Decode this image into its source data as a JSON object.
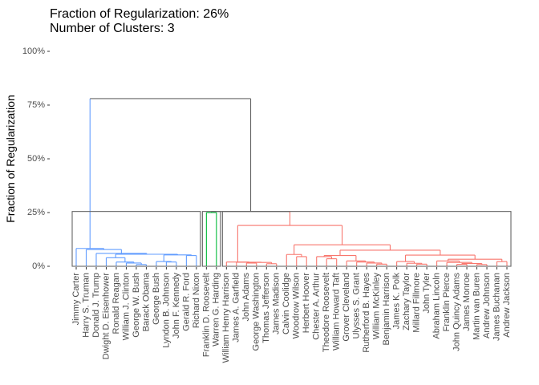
{
  "chart_data": {
    "type": "dendrogram",
    "title": "Fraction of Regularization: 26%",
    "subtitle": "Number of Clusters: 3",
    "ylabel": "Fraction of Regularization",
    "ylim": [
      0,
      100
    ],
    "yticks": [
      {
        "value": 0,
        "label": "0%"
      },
      {
        "value": 25,
        "label": "25%"
      },
      {
        "value": 50,
        "label": "50%"
      },
      {
        "value": 75,
        "label": "75%"
      },
      {
        "value": 100,
        "label": "100%"
      }
    ],
    "rect_height": 25.5,
    "rect_color": "#666666",
    "tree": {
      "height": 78,
      "color": "#666666",
      "children": [
        {
          "height": 8.3,
          "color": "#619CFF",
          "children": [
            {
              "label": "Jimmy Carter"
            },
            {
              "height": 7.8,
              "children": [
                {
                  "label": "Harry S. Truman"
                },
                {
                  "height": 6.0,
                  "children": [
                    {
                      "label": "Donald J. Trump"
                    },
                    {
                      "height": 5.6,
                      "children": [
                        {
                          "height": 4.0,
                          "children": [
                            {
                              "label": "Dwight D. Eisenhower"
                            },
                            {
                              "height": 2.0,
                              "children": [
                                {
                                  "label": "Ronald Reagan"
                                },
                                {
                                  "height": 1.5,
                                  "children": [
                                    {
                                      "label": "William J. Clinton"
                                    },
                                    {
                                      "height": 0.8,
                                      "children": [
                                        {
                                          "label": "George W. Bush"
                                        },
                                        {
                                          "label": "Barack Obama"
                                        }
                                      ]
                                    }
                                  ]
                                }
                              ]
                            }
                          ]
                        },
                        {
                          "height": 5.3,
                          "children": [
                            {
                              "height": 2.2,
                              "children": [
                                {
                                  "label": "George Bush"
                                },
                                {
                                  "height": 2.0,
                                  "children": [
                                    {
                                      "label": "Lyndon B. Johnson"
                                    },
                                    {
                                      "label": "John F. Kennedy"
                                    }
                                  ]
                                }
                              ]
                            },
                            {
                              "height": 5.0,
                              "children": [
                                {
                                  "label": "Gerald R. Ford"
                                },
                                {
                                  "label": "Richard Nixon"
                                }
                              ]
                            }
                          ]
                        }
                      ]
                    }
                  ]
                }
              ]
            }
          ]
        },
        {
          "height": 25.5,
          "children": [
            {
              "height": 25,
              "color": "#00BA38",
              "children": [
                {
                  "label": "Franklin D. Roosevelt"
                },
                {
                  "label": "Warren G. Harding"
                }
              ]
            },
            {
              "height": 19,
              "color": "#F8766D",
              "children": [
                {
                  "height": 2.0,
                  "children": [
                    {
                      "label": "William Henry Harrison"
                    },
                    {
                      "height": 1.9,
                      "children": [
                        {
                          "label": "James A. Garfield"
                        },
                        {
                          "height": 1.8,
                          "children": [
                            {
                              "height": 1.5,
                              "children": [
                                {
                                  "label": "John Adams"
                                },
                                {
                                  "label": "George Washington"
                                }
                              ]
                            },
                            {
                              "height": 1.2,
                              "children": [
                                {
                                  "label": "Thomas Jefferson"
                                },
                                {
                                  "label": "James Madison"
                                }
                              ]
                            }
                          ]
                        }
                      ]
                    }
                  ]
                },
                {
                  "height": 10,
                  "children": [
                    {
                      "height": 5.5,
                      "children": [
                        {
                          "label": "Calvin Coolidge"
                        },
                        {
                          "height": 4.5,
                          "children": [
                            {
                              "label": "Woodrow Wilson"
                            },
                            {
                              "label": "Herbert Hoover"
                            }
                          ]
                        }
                      ]
                    },
                    {
                      "height": 7.5,
                      "children": [
                        {
                          "height": 5.0,
                          "children": [
                            {
                              "height": 4.5,
                              "children": [
                                {
                                  "label": "Chester A. Arthur"
                                },
                                {
                                  "height": 3.5,
                                  "children": [
                                    {
                                      "label": "Theodore Roosevelt"
                                    },
                                    {
                                      "label": "William Howard Taft"
                                    }
                                  ]
                                }
                              ]
                            },
                            {
                              "height": 2.5,
                              "children": [
                                {
                                  "label": "Grover Cleveland"
                                },
                                {
                                  "height": 2.0,
                                  "children": [
                                    {
                                      "label": "Ulysses S. Grant"
                                    },
                                    {
                                      "height": 1.5,
                                      "children": [
                                        {
                                          "label": "Rutherford B. Hayes"
                                        },
                                        {
                                          "height": 1.0,
                                          "children": [
                                            {
                                              "label": "William McKinley"
                                            },
                                            {
                                              "label": "Benjamin Harrison"
                                            }
                                          ]
                                        }
                                      ]
                                    }
                                  ]
                                }
                              ]
                            }
                          ]
                        },
                        {
                          "height": 5.2,
                          "children": [
                            {
                              "height": 2.2,
                              "children": [
                                {
                                  "label": "James K. Polk"
                                },
                                {
                                  "height": 1.4,
                                  "children": [
                                    {
                                      "label": "Zachary Taylor"
                                    },
                                    {
                                      "height": 1.0,
                                      "children": [
                                        {
                                          "label": "Millard Fillmore"
                                        },
                                        {
                                          "label": "John Tyler"
                                        }
                                      ]
                                    }
                                  ]
                                }
                              ]
                            },
                            {
                              "height": 3.3,
                              "children": [
                                {
                                  "height": 2.5,
                                  "children": [
                                    {
                                      "label": "Abraham Lincoln"
                                    },
                                    {
                                      "height": 1.8,
                                      "children": [
                                        {
                                          "label": "Franklin Pierce"
                                        },
                                        {
                                          "height": 1.3,
                                          "children": [
                                            {
                                              "height": 0.9,
                                              "children": [
                                                {
                                                  "label": "John Quincy Adams"
                                                },
                                                {
                                                  "label": "James Monroe"
                                                }
                                              ]
                                            },
                                            {
                                              "height": 0.8,
                                              "children": [
                                                {
                                                  "label": "Martin van Buren"
                                                },
                                                {
                                                  "label": "Andrew Johnson"
                                                }
                                              ]
                                            }
                                          ]
                                        }
                                      ]
                                    }
                                  ]
                                },
                                {
                                  "height": 2.2,
                                  "children": [
                                    {
                                      "label": "James Buchanan"
                                    },
                                    {
                                      "label": "Andrew Jackson"
                                    }
                                  ]
                                }
                              ]
                            }
                          ]
                        }
                      ]
                    }
                  ]
                }
              ]
            }
          ]
        }
      ]
    }
  }
}
